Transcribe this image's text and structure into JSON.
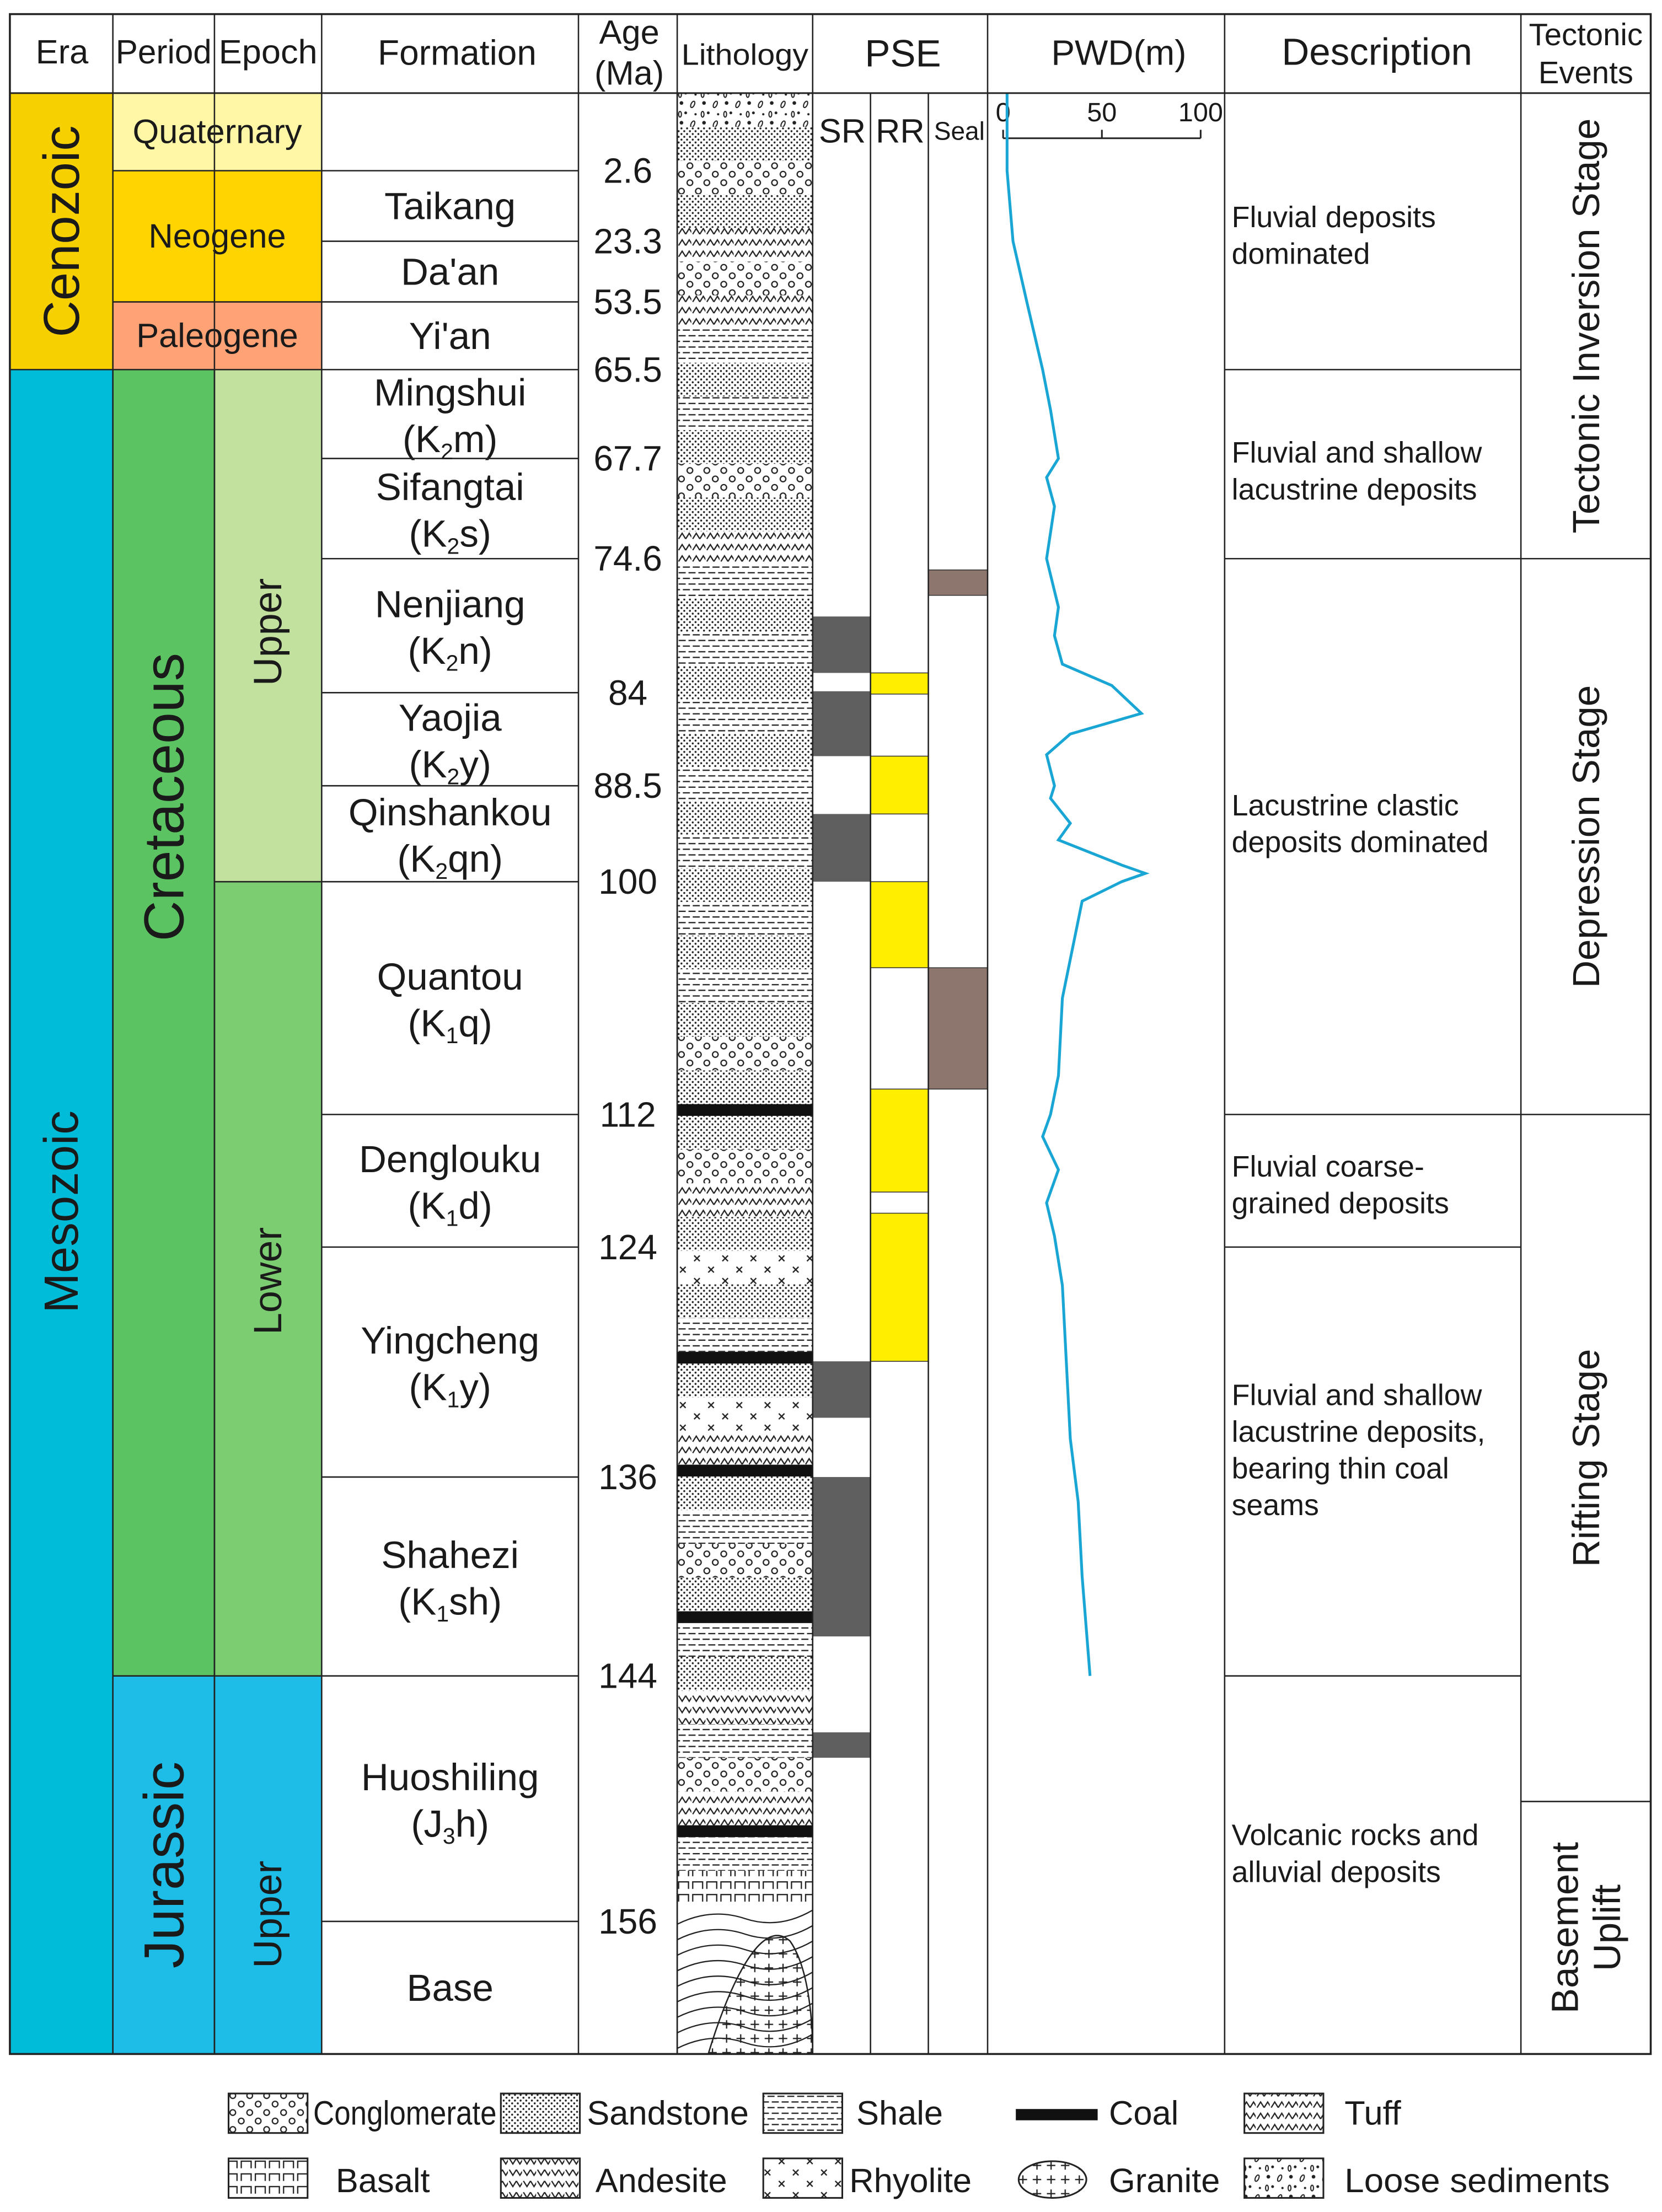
{
  "headers": {
    "era": "Era",
    "period": "Period",
    "epoch": "Epoch",
    "formation": "Formation",
    "age_line1": "Age",
    "age_line2": "(Ma)",
    "lithology": "Lithology",
    "pse": "PSE",
    "pwd": "PWD(m)",
    "description": "Description",
    "tectonic_line1": "Tectonic",
    "tectonic_line2": "Events"
  },
  "pse_sub": {
    "sr": "SR",
    "rr": "RR",
    "seal": "Seal"
  },
  "eras": [
    {
      "label": "Cenozoic",
      "color": "#f6d000",
      "from": "Quaternary",
      "to": "Yi'an"
    },
    {
      "label": "Mesozoic",
      "color": "#00bcd8",
      "from": "Mingshui",
      "to": "Base"
    }
  ],
  "periods": [
    {
      "label": "Quaternary",
      "color": "#fff6a6"
    },
    {
      "label": "Neogene",
      "color": "#ffd400"
    },
    {
      "label": "Paleogene",
      "color": "#ffa276"
    },
    {
      "label": "Cretaceous",
      "color": "#5cc363"
    },
    {
      "label": "Jurassic",
      "color": "#1dbde8"
    }
  ],
  "epochs": [
    {
      "label": "Upper",
      "period": "Cretaceous",
      "color": "#c3e19e"
    },
    {
      "label": "Lower",
      "period": "Cretaceous",
      "color": "#7ccd71"
    },
    {
      "label": "Upper",
      "period": "Jurassic",
      "color": "#1dbde8"
    }
  ],
  "formations": [
    {
      "name": "",
      "code": "",
      "code_sub": "",
      "code_tail": ""
    },
    {
      "name": "Taikang",
      "code": "",
      "code_sub": "",
      "code_tail": ""
    },
    {
      "name": "Da'an",
      "code": "",
      "code_sub": "",
      "code_tail": ""
    },
    {
      "name": "Yi'an",
      "code": "",
      "code_sub": "",
      "code_tail": ""
    },
    {
      "name": "Mingshui",
      "code": "(K",
      "code_sub": "2",
      "code_tail": "m)"
    },
    {
      "name": "Sifangtai",
      "code": "(K",
      "code_sub": "2",
      "code_tail": "s)"
    },
    {
      "name": "Nenjiang",
      "code": "(K",
      "code_sub": "2",
      "code_tail": "n)"
    },
    {
      "name": "Yaojia",
      "code": "(K",
      "code_sub": "2",
      "code_tail": "y)"
    },
    {
      "name": "Qinshankou",
      "code": "(K",
      "code_sub": "2",
      "code_tail": "qn)"
    },
    {
      "name": "Quantou",
      "code": "(K",
      "code_sub": "1",
      "code_tail": "q)"
    },
    {
      "name": "Denglouku",
      "code": "(K",
      "code_sub": "1",
      "code_tail": "d)"
    },
    {
      "name": "Yingcheng",
      "code": "(K",
      "code_sub": "1",
      "code_tail": "y)"
    },
    {
      "name": "Shahezi",
      "code": "(K",
      "code_sub": "1",
      "code_tail": "sh)"
    },
    {
      "name": "Huoshiling",
      "code": "(J",
      "code_sub": "3",
      "code_tail": "h)"
    },
    {
      "name": "Base",
      "code": "",
      "code_sub": "",
      "code_tail": ""
    }
  ],
  "ages": [
    "2.6",
    "23.3",
    "53.5",
    "65.5",
    "67.7",
    "74.6",
    "84",
    "88.5",
    "100",
    "112",
    "124",
    "136",
    "144",
    "156"
  ],
  "lithology_column": [
    "Loose sediments",
    "Sandstone",
    "Conglomerate",
    "Sandstone",
    "Tuff",
    "Conglomerate",
    "Tuff",
    "Shale",
    "Sandstone",
    "Shale",
    "Sandstone",
    "Conglomerate",
    "Sandstone",
    "Tuff",
    "Shale",
    "Sandstone",
    "Shale",
    "Sandstone",
    "Shale",
    "Sandstone",
    "Shale",
    "Sandstone",
    "Shale",
    "Sandstone",
    "Shale",
    "Sandstone",
    "Shale",
    "Sandstone",
    "Conglomerate",
    "Sandstone",
    "Coal",
    "Sandstone",
    "Conglomerate",
    "Tuff",
    "Sandstone",
    "Rhyolite",
    "Sandstone",
    "Shale",
    "Coal",
    "Sandstone",
    "Rhyolite",
    "Tuff",
    "Coal",
    "Sandstone",
    "Shale",
    "Conglomerate",
    "Sandstone",
    "Coal",
    "Shale",
    "Sandstone",
    "Andesite",
    "Shale",
    "Conglomerate",
    "Tuff",
    "Coal",
    "Shale",
    "Basalt",
    "Granite"
  ],
  "pse": {
    "source_rock_color": "#5f5f5f",
    "reservoir_color": "#ffee00",
    "seal_color": "#8c766e",
    "source_rock_intervals": [
      [
        "Nenjiang",
        "Nenjiang"
      ],
      [
        "Yaojia",
        "Yaojia"
      ],
      [
        "Qinshankou",
        "Qinshankou"
      ],
      [
        "Yingcheng",
        "Yingcheng"
      ],
      [
        "Shahezi",
        "Shahezi"
      ],
      [
        "Huoshiling",
        "Huoshiling"
      ]
    ],
    "reservoir_intervals": [
      [
        "Yaojia",
        "Yaojia"
      ],
      [
        "Qinshankou",
        "Qinshankou"
      ],
      [
        "Quantou",
        "Quantou"
      ],
      [
        "Denglouku",
        "Denglouku"
      ],
      [
        "Denglouku",
        "Yingcheng"
      ]
    ],
    "seal_intervals": [
      [
        "Nenjiang",
        "Nenjiang"
      ],
      [
        "Quantou",
        "Quantou"
      ]
    ]
  },
  "pwd": {
    "axis_ticks": [
      "0",
      "50",
      "100"
    ],
    "range": [
      0,
      100
    ],
    "line_color": "#1aa6d4",
    "profile": [
      [
        2,
        0
      ],
      [
        2,
        2.6
      ],
      [
        5,
        23.3
      ],
      [
        12,
        53.5
      ],
      [
        20,
        65.5
      ],
      [
        24,
        66.5
      ],
      [
        28,
        67.7
      ],
      [
        22,
        69
      ],
      [
        26,
        71
      ],
      [
        22,
        74.6
      ],
      [
        28,
        78
      ],
      [
        26,
        80
      ],
      [
        30,
        82
      ],
      [
        55,
        83.5
      ],
      [
        70,
        85
      ],
      [
        34,
        86
      ],
      [
        22,
        87
      ],
      [
        26,
        88.5
      ],
      [
        24,
        90
      ],
      [
        34,
        93
      ],
      [
        28,
        95
      ],
      [
        60,
        98
      ],
      [
        72,
        99
      ],
      [
        60,
        100
      ],
      [
        40,
        101
      ],
      [
        36,
        103
      ],
      [
        30,
        106
      ],
      [
        28,
        110
      ],
      [
        24,
        112
      ],
      [
        20,
        114
      ],
      [
        28,
        117
      ],
      [
        22,
        120
      ],
      [
        26,
        123
      ],
      [
        30,
        126
      ],
      [
        32,
        130
      ],
      [
        34,
        134
      ],
      [
        38,
        137
      ],
      [
        40,
        140
      ],
      [
        44,
        144
      ]
    ]
  },
  "descriptions": [
    {
      "text": "Fluvial deposits dominated",
      "lines": [
        "Fluvial deposits",
        "dominated"
      ]
    },
    {
      "text": "Fluvial and shallow lacustrine deposits",
      "lines": [
        "Fluvial and shallow",
        "lacustrine deposits"
      ]
    },
    {
      "text": "Lacustrine clastic deposits dominated",
      "lines": [
        "Lacustrine clastic",
        "deposits dominated"
      ]
    },
    {
      "text": "Fluvial coarse-grained deposits",
      "lines": [
        "Fluvial coarse-",
        "grained deposits"
      ]
    },
    {
      "text": "Fluvial and shallow lacustrine deposits, bearing thin coal seams",
      "lines": [
        "Fluvial and shallow",
        "lacustrine deposits,",
        "bearing thin coal",
        "seams"
      ]
    },
    {
      "text": "Volcanic rocks and alluvial deposits",
      "lines": [
        "Volcanic rocks and",
        "alluvial deposits"
      ]
    }
  ],
  "tectonic_events": [
    {
      "label": "Tectonic Inversion Stage",
      "lines": [
        "Tectonic Inversion Stage"
      ]
    },
    {
      "label": "Depression Stage",
      "lines": [
        "Depression Stage"
      ]
    },
    {
      "label": "Rifting Stage",
      "lines": [
        "Rifting Stage"
      ]
    },
    {
      "label": "Basement Uplift",
      "lines": [
        "Basement",
        "Uplift"
      ]
    }
  ],
  "legend": [
    {
      "key": "conglomerate",
      "label": "Conglomerate"
    },
    {
      "key": "sandstone",
      "label": "Sandstone"
    },
    {
      "key": "shale",
      "label": "Shale"
    },
    {
      "key": "coal",
      "label": "Coal"
    },
    {
      "key": "tuff",
      "label": "Tuff"
    },
    {
      "key": "basalt",
      "label": "Basalt"
    },
    {
      "key": "andesite",
      "label": "Andesite"
    },
    {
      "key": "rhyolite",
      "label": "Rhyolite"
    },
    {
      "key": "granite",
      "label": "Granite"
    },
    {
      "key": "loose",
      "label": "Loose sediments"
    }
  ]
}
